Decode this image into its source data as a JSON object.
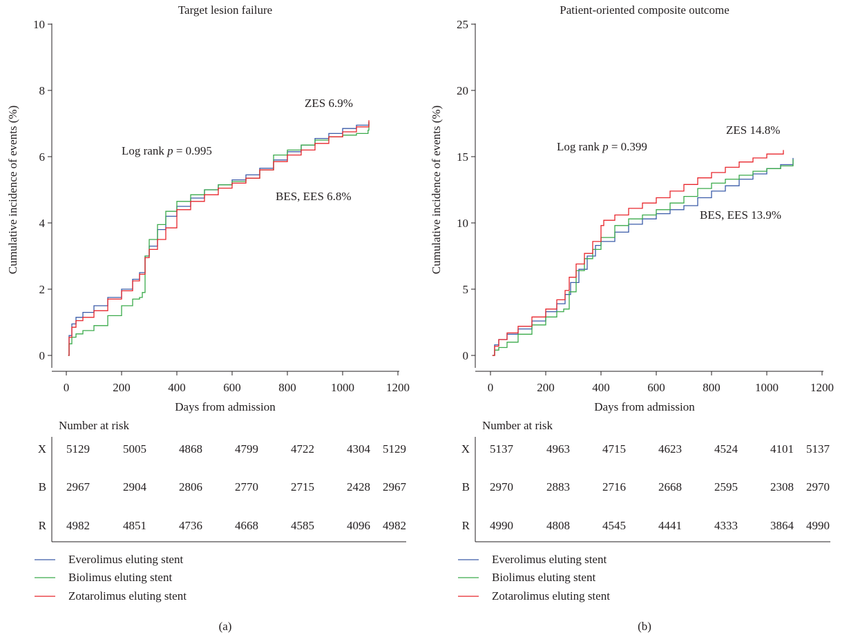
{
  "colors": {
    "everolimus": "#3a5ba8",
    "biolimus": "#3aaa4a",
    "zotarolimus": "#e8252b",
    "axis": "#231f20"
  },
  "risk_title": "Number at risk",
  "legend": [
    "Everolimus eluting stent",
    "Biolimus eluting stent",
    "Zotarolimus eluting stent"
  ],
  "chart_data": [
    {
      "type": "line",
      "panel_label": "(a)",
      "title": "Target lesion failure",
      "xlabel": "Days from admission",
      "ylabel": "Cumulative incidence of events (%)",
      "xlim": [
        0,
        1200
      ],
      "ylim": [
        0,
        10
      ],
      "xticks": [
        0,
        200,
        400,
        600,
        800,
        1000,
        1200
      ],
      "yticks": [
        0,
        2,
        4,
        6,
        8,
        10
      ],
      "grid": false,
      "annotations": {
        "logrank_prefix": "Log rank ",
        "logrank_p": "p",
        "logrank_value": " = 0.995",
        "top": "ZES 6.9%",
        "bottom": "BES, EES 6.8%"
      },
      "series": [
        {
          "name": "Everolimus eluting stent",
          "color": "#3a5ba8",
          "x": [
            7,
            10,
            20,
            35,
            60,
            100,
            150,
            200,
            240,
            265,
            285,
            300,
            330,
            360,
            400,
            450,
            500,
            550,
            600,
            650,
            700,
            750,
            800,
            850,
            900,
            950,
            1000,
            1050,
            1095
          ],
          "y": [
            0,
            0.6,
            0.95,
            1.15,
            1.3,
            1.5,
            1.75,
            2.0,
            2.3,
            2.5,
            3.0,
            3.3,
            3.8,
            4.2,
            4.5,
            4.75,
            5.0,
            5.15,
            5.3,
            5.45,
            5.65,
            5.9,
            6.15,
            6.35,
            6.55,
            6.7,
            6.85,
            6.95,
            7.05
          ]
        },
        {
          "name": "Biolimus eluting stent",
          "color": "#3aaa4a",
          "x": [
            7,
            10,
            20,
            35,
            60,
            100,
            150,
            200,
            240,
            265,
            275,
            285,
            300,
            330,
            360,
            400,
            450,
            500,
            550,
            600,
            650,
            700,
            750,
            800,
            850,
            900,
            950,
            1000,
            1050,
            1092,
            1095
          ],
          "y": [
            0,
            0.35,
            0.55,
            0.65,
            0.75,
            0.9,
            1.2,
            1.5,
            1.7,
            1.75,
            1.9,
            3.0,
            3.5,
            3.95,
            4.35,
            4.65,
            4.85,
            5.0,
            5.15,
            5.25,
            5.35,
            5.6,
            6.05,
            6.2,
            6.35,
            6.5,
            6.6,
            6.65,
            6.7,
            6.8,
            7.05
          ]
        },
        {
          "name": "Zotarolimus eluting stent",
          "color": "#e8252b",
          "x": [
            7,
            10,
            20,
            35,
            60,
            100,
            150,
            200,
            240,
            265,
            285,
            300,
            330,
            360,
            400,
            450,
            500,
            550,
            600,
            650,
            700,
            750,
            800,
            850,
            900,
            950,
            1000,
            1050,
            1095
          ],
          "y": [
            0,
            0.55,
            0.85,
            1.05,
            1.15,
            1.35,
            1.7,
            1.95,
            2.25,
            2.45,
            2.95,
            3.2,
            3.5,
            3.85,
            4.4,
            4.65,
            4.85,
            5.05,
            5.2,
            5.35,
            5.6,
            5.85,
            6.05,
            6.2,
            6.4,
            6.6,
            6.75,
            6.9,
            7.1
          ]
        }
      ],
      "risk_table": {
        "rows": [
          {
            "label": "X",
            "values": [
              "5129",
              "5005",
              "4868",
              "4799",
              "4722",
              "4304",
              "5129"
            ]
          },
          {
            "label": "B",
            "values": [
              "2967",
              "2904",
              "2806",
              "2770",
              "2715",
              "2428",
              "2967"
            ]
          },
          {
            "label": "R",
            "values": [
              "4982",
              "4851",
              "4736",
              "4668",
              "4585",
              "4096",
              "4982"
            ]
          }
        ]
      }
    },
    {
      "type": "line",
      "panel_label": "(b)",
      "title": "Patient-oriented composite outcome",
      "xlabel": "Days from admission",
      "ylabel": "Cumulative incidence of events (%)",
      "xlim": [
        0,
        1200
      ],
      "ylim": [
        0,
        25
      ],
      "xticks": [
        0,
        200,
        400,
        600,
        800,
        1000,
        1200
      ],
      "yticks": [
        0,
        5,
        10,
        15,
        20,
        25
      ],
      "grid": false,
      "annotations": {
        "logrank_prefix": "Log rank ",
        "logrank_p": "p",
        "logrank_value": " = 0.399",
        "top": "ZES 14.8%",
        "bottom": "BES, EES 13.9%"
      },
      "series": [
        {
          "name": "Everolimus eluting stent",
          "color": "#3a5ba8",
          "x": [
            7,
            15,
            30,
            60,
            100,
            150,
            200,
            240,
            270,
            290,
            320,
            350,
            380,
            400,
            450,
            500,
            550,
            600,
            650,
            700,
            750,
            800,
            850,
            900,
            950,
            1000,
            1050,
            1095
          ],
          "y": [
            0,
            0.8,
            1.2,
            1.6,
            2.0,
            2.6,
            3.3,
            3.9,
            4.6,
            5.5,
            6.5,
            7.5,
            8.3,
            8.6,
            9.3,
            9.9,
            10.3,
            10.7,
            11.0,
            11.3,
            11.9,
            12.4,
            12.8,
            13.3,
            13.7,
            14.1,
            14.4,
            14.9
          ]
        },
        {
          "name": "Biolimus eluting stent",
          "color": "#3aaa4a",
          "x": [
            7,
            15,
            30,
            60,
            100,
            150,
            200,
            240,
            265,
            285,
            310,
            340,
            370,
            400,
            450,
            500,
            550,
            600,
            650,
            700,
            750,
            800,
            850,
            900,
            950,
            1000,
            1050,
            1095
          ],
          "y": [
            0,
            0.4,
            0.6,
            1.0,
            1.6,
            2.3,
            2.9,
            3.3,
            3.5,
            4.8,
            6.4,
            7.3,
            8.0,
            8.9,
            9.8,
            10.3,
            10.6,
            11.0,
            11.5,
            12.0,
            12.6,
            13.0,
            13.3,
            13.6,
            13.9,
            14.1,
            14.3,
            14.8
          ]
        },
        {
          "name": "Zotarolimus eluting stent",
          "color": "#e8252b",
          "x": [
            7,
            15,
            30,
            60,
            100,
            150,
            200,
            240,
            270,
            285,
            310,
            340,
            370,
            400,
            410,
            450,
            500,
            550,
            600,
            650,
            700,
            750,
            800,
            850,
            900,
            950,
            1000,
            1060
          ],
          "y": [
            0,
            0.7,
            1.2,
            1.7,
            2.2,
            2.9,
            3.5,
            4.2,
            4.9,
            5.9,
            6.9,
            7.7,
            8.6,
            9.8,
            10.2,
            10.6,
            11.1,
            11.5,
            11.9,
            12.4,
            12.9,
            13.4,
            13.8,
            14.2,
            14.6,
            14.9,
            15.2,
            15.5
          ]
        }
      ],
      "risk_table": {
        "rows": [
          {
            "label": "X",
            "values": [
              "5137",
              "4963",
              "4715",
              "4623",
              "4524",
              "4101",
              "5137"
            ]
          },
          {
            "label": "B",
            "values": [
              "2970",
              "2883",
              "2716",
              "2668",
              "2595",
              "2308",
              "2970"
            ]
          },
          {
            "label": "R",
            "values": [
              "4990",
              "4808",
              "4545",
              "4441",
              "4333",
              "3864",
              "4990"
            ]
          }
        ]
      }
    }
  ]
}
